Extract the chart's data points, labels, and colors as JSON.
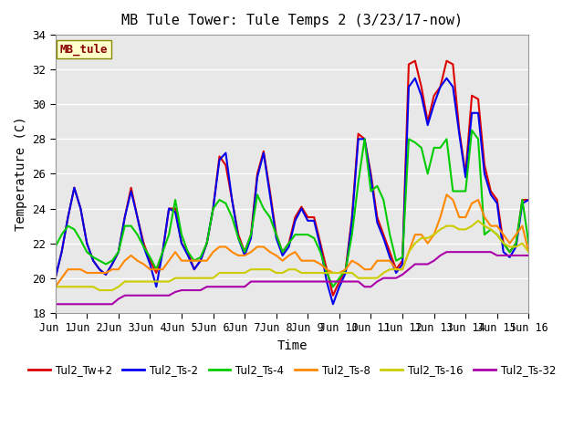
{
  "title": "MB Tule Tower: Tule Temps 2 (3/23/17-now)",
  "xlabel": "Time",
  "ylabel": "Temperature (C)",
  "ylim": [
    18,
    34
  ],
  "xlim": [
    0,
    15
  ],
  "xtick_labels": [
    "Jun 1",
    "Jun 2",
    "Jun 3",
    "Jun 4",
    "Jun 5",
    "Jun 6",
    "Jun 7",
    "Jun 8",
    "Jun 9",
    "Jun 10",
    "Jun 11",
    "Jun 12",
    "Jun 13",
    "Jun 14",
    "Jun 15",
    "Jun 16"
  ],
  "xtick_positions": [
    0,
    1,
    2,
    3,
    4,
    5,
    6,
    7,
    8,
    9,
    10,
    11,
    12,
    13,
    14,
    15
  ],
  "ytick_positions": [
    18,
    20,
    22,
    24,
    26,
    28,
    30,
    32,
    34
  ],
  "background_color": "#e8e8e8",
  "grid_color": "#ffffff",
  "legend_label": "MB_tule",
  "series": [
    {
      "name": "Tul2_Tw+2",
      "color": "#dd0000",
      "lw": 1.5,
      "x": [
        0.0,
        0.2,
        0.4,
        0.6,
        0.8,
        1.0,
        1.2,
        1.4,
        1.6,
        1.8,
        2.0,
        2.2,
        2.4,
        2.6,
        2.8,
        3.0,
        3.2,
        3.4,
        3.6,
        3.8,
        4.0,
        4.2,
        4.4,
        4.6,
        4.8,
        5.0,
        5.2,
        5.4,
        5.6,
        5.8,
        6.0,
        6.2,
        6.4,
        6.6,
        6.8,
        7.0,
        7.2,
        7.4,
        7.6,
        7.8,
        8.0,
        8.2,
        8.4,
        8.6,
        8.8,
        9.0,
        9.2,
        9.4,
        9.6,
        9.8,
        10.0,
        10.2,
        10.4,
        10.6,
        10.8,
        11.0,
        11.2,
        11.4,
        11.6,
        11.8,
        12.0,
        12.2,
        12.4,
        12.6,
        12.8,
        13.0,
        13.2,
        13.4,
        13.6,
        13.8,
        14.0,
        14.2,
        14.4,
        14.6,
        14.8,
        15.0
      ],
      "y": [
        20.0,
        21.5,
        23.5,
        25.2,
        24.0,
        22.0,
        21.0,
        20.5,
        20.2,
        20.8,
        21.5,
        23.5,
        25.2,
        23.5,
        22.0,
        21.0,
        20.3,
        21.5,
        24.0,
        24.0,
        22.0,
        21.5,
        20.5,
        21.0,
        22.0,
        24.0,
        27.0,
        26.5,
        24.5,
        22.5,
        21.5,
        22.5,
        26.0,
        27.3,
        25.0,
        22.5,
        21.5,
        22.0,
        23.5,
        24.1,
        23.5,
        23.5,
        22.0,
        20.5,
        19.0,
        19.8,
        20.5,
        23.5,
        28.3,
        28.0,
        26.0,
        23.5,
        22.5,
        21.5,
        20.5,
        21.0,
        32.3,
        32.5,
        31.0,
        29.0,
        30.5,
        31.0,
        32.5,
        32.3,
        28.5,
        26.0,
        30.5,
        30.3,
        26.5,
        25.0,
        24.5,
        22.0,
        21.5,
        22.0,
        24.5,
        24.5
      ]
    },
    {
      "name": "Tul2_Ts-2",
      "color": "#0000ee",
      "lw": 1.5,
      "x": [
        0.0,
        0.2,
        0.4,
        0.6,
        0.8,
        1.0,
        1.2,
        1.4,
        1.6,
        1.8,
        2.0,
        2.2,
        2.4,
        2.6,
        2.8,
        3.0,
        3.2,
        3.4,
        3.6,
        3.8,
        4.0,
        4.2,
        4.4,
        4.6,
        4.8,
        5.0,
        5.2,
        5.4,
        5.6,
        5.8,
        6.0,
        6.2,
        6.4,
        6.6,
        6.8,
        7.0,
        7.2,
        7.4,
        7.6,
        7.8,
        8.0,
        8.2,
        8.4,
        8.6,
        8.8,
        9.0,
        9.2,
        9.4,
        9.6,
        9.8,
        10.0,
        10.2,
        10.4,
        10.6,
        10.8,
        11.0,
        11.2,
        11.4,
        11.6,
        11.8,
        12.0,
        12.2,
        12.4,
        12.6,
        12.8,
        13.0,
        13.2,
        13.4,
        13.6,
        13.8,
        14.0,
        14.2,
        14.4,
        14.6,
        14.8,
        15.0
      ],
      "y": [
        20.0,
        21.5,
        23.5,
        25.2,
        24.0,
        22.0,
        21.0,
        20.5,
        20.2,
        20.8,
        21.5,
        23.5,
        25.0,
        23.5,
        21.8,
        20.8,
        19.5,
        21.5,
        24.0,
        23.8,
        22.0,
        21.3,
        20.5,
        21.0,
        22.0,
        24.0,
        26.8,
        27.2,
        24.5,
        22.3,
        21.3,
        22.3,
        25.8,
        27.2,
        24.8,
        22.3,
        21.3,
        21.8,
        23.3,
        24.0,
        23.3,
        23.3,
        21.8,
        19.8,
        18.5,
        19.5,
        20.3,
        23.3,
        28.0,
        28.0,
        25.8,
        23.2,
        22.3,
        21.2,
        20.3,
        20.8,
        31.0,
        31.5,
        30.5,
        28.8,
        30.0,
        31.0,
        31.5,
        31.0,
        28.3,
        25.8,
        29.5,
        29.5,
        26.0,
        24.8,
        24.3,
        21.5,
        21.2,
        21.8,
        24.3,
        24.5
      ]
    },
    {
      "name": "Tul2_Ts-4",
      "color": "#00cc00",
      "lw": 1.5,
      "x": [
        0.0,
        0.2,
        0.4,
        0.6,
        0.8,
        1.0,
        1.2,
        1.4,
        1.6,
        1.8,
        2.0,
        2.2,
        2.4,
        2.6,
        2.8,
        3.0,
        3.2,
        3.4,
        3.6,
        3.8,
        4.0,
        4.2,
        4.4,
        4.6,
        4.8,
        5.0,
        5.2,
        5.4,
        5.6,
        5.8,
        6.0,
        6.2,
        6.4,
        6.6,
        6.8,
        7.0,
        7.2,
        7.4,
        7.6,
        7.8,
        8.0,
        8.2,
        8.4,
        8.6,
        8.8,
        9.0,
        9.2,
        9.4,
        9.6,
        9.8,
        10.0,
        10.2,
        10.4,
        10.6,
        10.8,
        11.0,
        11.2,
        11.4,
        11.6,
        11.8,
        12.0,
        12.2,
        12.4,
        12.6,
        12.8,
        13.0,
        13.2,
        13.4,
        13.6,
        13.8,
        14.0,
        14.2,
        14.4,
        14.6,
        14.8,
        15.0
      ],
      "y": [
        21.8,
        22.5,
        23.0,
        22.8,
        22.2,
        21.5,
        21.2,
        21.0,
        20.8,
        21.0,
        21.5,
        23.0,
        23.0,
        22.5,
        21.8,
        21.2,
        20.5,
        21.5,
        22.5,
        24.5,
        22.5,
        21.5,
        21.0,
        21.2,
        22.0,
        24.0,
        24.5,
        24.3,
        23.5,
        22.3,
        21.5,
        22.5,
        24.8,
        24.0,
        23.5,
        22.5,
        21.5,
        22.0,
        22.5,
        22.5,
        22.5,
        22.3,
        21.5,
        20.3,
        19.5,
        20.0,
        20.5,
        22.5,
        25.5,
        28.0,
        25.0,
        25.3,
        24.5,
        22.5,
        21.0,
        21.2,
        28.0,
        27.8,
        27.5,
        26.0,
        27.5,
        27.5,
        28.0,
        25.0,
        25.0,
        25.0,
        28.5,
        28.0,
        22.5,
        22.8,
        22.5,
        22.0,
        21.5,
        22.0,
        24.5,
        22.0
      ]
    },
    {
      "name": "Tul2_Ts-8",
      "color": "#ff8800",
      "lw": 1.5,
      "x": [
        0.0,
        0.2,
        0.4,
        0.6,
        0.8,
        1.0,
        1.2,
        1.4,
        1.6,
        1.8,
        2.0,
        2.2,
        2.4,
        2.6,
        2.8,
        3.0,
        3.2,
        3.4,
        3.6,
        3.8,
        4.0,
        4.2,
        4.4,
        4.6,
        4.8,
        5.0,
        5.2,
        5.4,
        5.6,
        5.8,
        6.0,
        6.2,
        6.4,
        6.6,
        6.8,
        7.0,
        7.2,
        7.4,
        7.6,
        7.8,
        8.0,
        8.2,
        8.4,
        8.6,
        8.8,
        9.0,
        9.2,
        9.4,
        9.6,
        9.8,
        10.0,
        10.2,
        10.4,
        10.6,
        10.8,
        11.0,
        11.2,
        11.4,
        11.6,
        11.8,
        12.0,
        12.2,
        12.4,
        12.6,
        12.8,
        13.0,
        13.2,
        13.4,
        13.6,
        13.8,
        14.0,
        14.2,
        14.4,
        14.6,
        14.8,
        15.0
      ],
      "y": [
        19.5,
        20.0,
        20.5,
        20.5,
        20.5,
        20.3,
        20.3,
        20.3,
        20.3,
        20.5,
        20.5,
        21.0,
        21.3,
        21.0,
        20.8,
        20.5,
        20.5,
        20.5,
        21.0,
        21.5,
        21.0,
        21.0,
        21.0,
        21.0,
        21.0,
        21.5,
        21.8,
        21.8,
        21.5,
        21.3,
        21.3,
        21.5,
        21.8,
        21.8,
        21.5,
        21.3,
        21.0,
        21.3,
        21.5,
        21.0,
        21.0,
        21.0,
        20.8,
        20.5,
        20.3,
        20.3,
        20.5,
        21.0,
        20.8,
        20.5,
        20.5,
        21.0,
        21.0,
        21.0,
        20.5,
        20.5,
        21.5,
        22.5,
        22.5,
        22.0,
        22.5,
        23.5,
        24.8,
        24.5,
        23.5,
        23.5,
        24.3,
        24.5,
        23.5,
        23.0,
        23.0,
        22.5,
        22.0,
        22.5,
        23.0,
        21.5
      ]
    },
    {
      "name": "Tul2_Ts-16",
      "color": "#cccc00",
      "lw": 1.5,
      "x": [
        0.0,
        0.2,
        0.4,
        0.6,
        0.8,
        1.0,
        1.2,
        1.4,
        1.6,
        1.8,
        2.0,
        2.2,
        2.4,
        2.6,
        2.8,
        3.0,
        3.2,
        3.4,
        3.6,
        3.8,
        4.0,
        4.2,
        4.4,
        4.6,
        4.8,
        5.0,
        5.2,
        5.4,
        5.6,
        5.8,
        6.0,
        6.2,
        6.4,
        6.6,
        6.8,
        7.0,
        7.2,
        7.4,
        7.6,
        7.8,
        8.0,
        8.2,
        8.4,
        8.6,
        8.8,
        9.0,
        9.2,
        9.4,
        9.6,
        9.8,
        10.0,
        10.2,
        10.4,
        10.6,
        10.8,
        11.0,
        11.2,
        11.4,
        11.6,
        11.8,
        12.0,
        12.2,
        12.4,
        12.6,
        12.8,
        13.0,
        13.2,
        13.4,
        13.6,
        13.8,
        14.0,
        14.2,
        14.4,
        14.6,
        14.8,
        15.0
      ],
      "y": [
        19.5,
        19.5,
        19.5,
        19.5,
        19.5,
        19.5,
        19.5,
        19.3,
        19.3,
        19.3,
        19.5,
        19.8,
        19.8,
        19.8,
        19.8,
        19.8,
        19.8,
        19.8,
        19.8,
        20.0,
        20.0,
        20.0,
        20.0,
        20.0,
        20.0,
        20.0,
        20.3,
        20.3,
        20.3,
        20.3,
        20.3,
        20.5,
        20.5,
        20.5,
        20.5,
        20.3,
        20.3,
        20.5,
        20.5,
        20.3,
        20.3,
        20.3,
        20.3,
        20.3,
        20.3,
        20.3,
        20.3,
        20.3,
        20.0,
        20.0,
        20.0,
        20.0,
        20.3,
        20.5,
        20.5,
        20.5,
        21.5,
        22.0,
        22.3,
        22.3,
        22.5,
        22.8,
        23.0,
        23.0,
        22.8,
        22.8,
        23.0,
        23.3,
        23.0,
        22.8,
        22.5,
        22.0,
        21.8,
        21.8,
        22.0,
        21.5
      ]
    },
    {
      "name": "Tul2_Ts-32",
      "color": "#aa00aa",
      "lw": 1.5,
      "x": [
        0.0,
        0.2,
        0.4,
        0.6,
        0.8,
        1.0,
        1.2,
        1.4,
        1.6,
        1.8,
        2.0,
        2.2,
        2.4,
        2.6,
        2.8,
        3.0,
        3.2,
        3.4,
        3.6,
        3.8,
        4.0,
        4.2,
        4.4,
        4.6,
        4.8,
        5.0,
        5.2,
        5.4,
        5.6,
        5.8,
        6.0,
        6.2,
        6.4,
        6.6,
        6.8,
        7.0,
        7.2,
        7.4,
        7.6,
        7.8,
        8.0,
        8.2,
        8.4,
        8.6,
        8.8,
        9.0,
        9.2,
        9.4,
        9.6,
        9.8,
        10.0,
        10.2,
        10.4,
        10.6,
        10.8,
        11.0,
        11.2,
        11.4,
        11.6,
        11.8,
        12.0,
        12.2,
        12.4,
        12.6,
        12.8,
        13.0,
        13.2,
        13.4,
        13.6,
        13.8,
        14.0,
        14.2,
        14.4,
        14.6,
        14.8,
        15.0
      ],
      "y": [
        18.5,
        18.5,
        18.5,
        18.5,
        18.5,
        18.5,
        18.5,
        18.5,
        18.5,
        18.5,
        18.8,
        19.0,
        19.0,
        19.0,
        19.0,
        19.0,
        19.0,
        19.0,
        19.0,
        19.2,
        19.3,
        19.3,
        19.3,
        19.3,
        19.5,
        19.5,
        19.5,
        19.5,
        19.5,
        19.5,
        19.5,
        19.8,
        19.8,
        19.8,
        19.8,
        19.8,
        19.8,
        19.8,
        19.8,
        19.8,
        19.8,
        19.8,
        19.8,
        19.8,
        19.8,
        19.8,
        19.8,
        19.8,
        19.8,
        19.5,
        19.5,
        19.8,
        20.0,
        20.0,
        20.0,
        20.2,
        20.5,
        20.8,
        20.8,
        20.8,
        21.0,
        21.3,
        21.5,
        21.5,
        21.5,
        21.5,
        21.5,
        21.5,
        21.5,
        21.5,
        21.3,
        21.3,
        21.3,
        21.3,
        21.3,
        21.3
      ]
    }
  ]
}
